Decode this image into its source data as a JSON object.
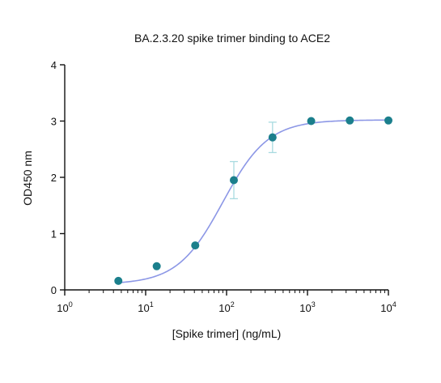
{
  "chart_data": {
    "type": "scatter",
    "title": "BA.2.3.20 spike trimer binding to ACE2",
    "xlabel": "[Spike trimer]  (ng/mL)",
    "ylabel": "OD450 nm",
    "x_scale": "log10",
    "xlim": [
      1,
      10000
    ],
    "ylim": [
      0,
      4
    ],
    "x_ticks": [
      {
        "value": 1,
        "base": "10",
        "exp": "0"
      },
      {
        "value": 10,
        "base": "10",
        "exp": "1"
      },
      {
        "value": 100,
        "base": "10",
        "exp": "2"
      },
      {
        "value": 1000,
        "base": "10",
        "exp": "3"
      },
      {
        "value": 10000,
        "base": "10",
        "exp": "4"
      }
    ],
    "y_ticks": [
      0,
      1,
      2,
      3,
      4
    ],
    "grid": false,
    "series": [
      {
        "x": [
          4.6,
          13.7,
          41,
          123,
          370,
          1111,
          3333,
          10000
        ],
        "y": [
          0.16,
          0.42,
          0.79,
          1.95,
          2.71,
          3.0,
          3.01,
          3.01
        ],
        "error": [
          0.02,
          0.03,
          0.05,
          0.33,
          0.27,
          0.03,
          0.02,
          0.02
        ]
      }
    ],
    "fit_curve": {
      "bottom": 0.1,
      "top": 3.02,
      "ec50": 90,
      "hill": 1.55
    },
    "colors": {
      "marker": "#1b7f8c",
      "curve": "#8c97e6",
      "error_bar": "#a8dbe0",
      "axis": "#111111"
    }
  }
}
